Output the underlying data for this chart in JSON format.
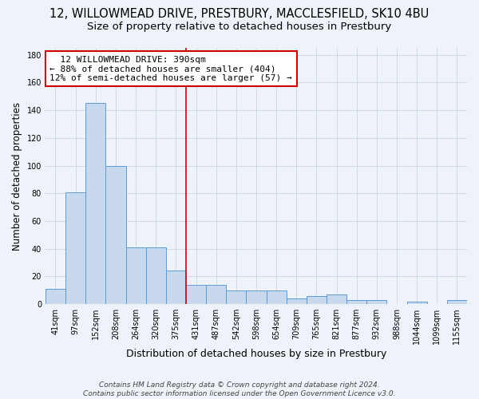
{
  "title1": "12, WILLOWMEAD DRIVE, PRESTBURY, MACCLESFIELD, SK10 4BU",
  "title2": "Size of property relative to detached houses in Prestbury",
  "xlabel": "Distribution of detached houses by size in Prestbury",
  "ylabel": "Number of detached properties",
  "categories": [
    "41sqm",
    "97sqm",
    "152sqm",
    "208sqm",
    "264sqm",
    "320sqm",
    "375sqm",
    "431sqm",
    "487sqm",
    "542sqm",
    "598sqm",
    "654sqm",
    "709sqm",
    "765sqm",
    "821sqm",
    "877sqm",
    "932sqm",
    "988sqm",
    "1044sqm",
    "1099sqm",
    "1155sqm"
  ],
  "vals": [
    11,
    81,
    145,
    100,
    41,
    41,
    24,
    14,
    14,
    10,
    10,
    10,
    4,
    6,
    7,
    3,
    3,
    0,
    2,
    0,
    3
  ],
  "bar_color": "#c9d9ed",
  "bar_edge_color": "#5b9bd5",
  "grid_color": "#d0d8e8",
  "background_color": "#eef2f9",
  "annotation_box_color": "#ffffff",
  "annotation_border_color": "#cc0000",
  "vline_color": "#cc0000",
  "vline_x": 6.5,
  "annotation_text": "  12 WILLOWMEAD DRIVE: 390sqm  \n← 88% of detached houses are smaller (404)\n12% of semi-detached houses are larger (57) →",
  "annotation_fontsize": 8,
  "footer_text": "Contains HM Land Registry data © Crown copyright and database right 2024.\nContains public sector information licensed under the Open Government Licence v3.0.",
  "ylim": [
    0,
    185
  ],
  "yticks": [
    0,
    20,
    40,
    60,
    80,
    100,
    120,
    140,
    160,
    180
  ],
  "title1_fontsize": 10.5,
  "title2_fontsize": 9.5,
  "xlabel_fontsize": 9,
  "ylabel_fontsize": 8.5
}
